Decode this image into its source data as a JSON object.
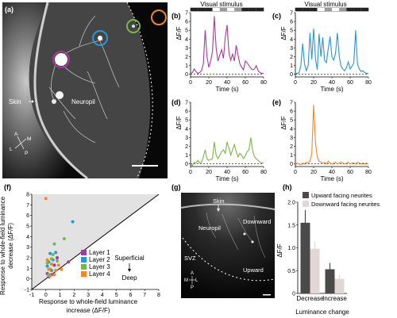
{
  "panel_a": {
    "label": "(a)",
    "skin_label": "Skin",
    "neuropil_label": "Neuropil",
    "compass": {
      "a": "A",
      "p": "P",
      "l": "L",
      "m": "M"
    },
    "circle_colors": [
      "#a73a9c",
      "#2a96d4",
      "#7ab648",
      "#f0882a"
    ]
  },
  "traces": {
    "stimulus_label": "Visual stimulus",
    "ylabel": "ΔF/F",
    "xlabel": "Time (s)",
    "x_ticks": [
      "0",
      "20",
      "40",
      "60",
      "80"
    ],
    "y_ticks": [
      "0",
      "1",
      "2",
      "3",
      "4",
      "5",
      "6",
      "7"
    ],
    "stimulus_bar": [
      "#222222",
      "#222222",
      "#222222",
      "#ffffff",
      "#9a9a9a",
      "#ffffff",
      "#9a9a9a",
      "#222222",
      "#222222",
      "#222222"
    ]
  },
  "chart_data": [
    {
      "panel": "(b)",
      "type": "line",
      "color": "#a73a9c",
      "xlim": [
        0,
        80
      ],
      "ylim": [
        -0.3,
        7
      ],
      "x": [
        0,
        2,
        4,
        6,
        8,
        10,
        12,
        14,
        16,
        18,
        20,
        22,
        24,
        26,
        28,
        30,
        32,
        34,
        36,
        38,
        40,
        42,
        44,
        46,
        48,
        50,
        52,
        54,
        56,
        58,
        60,
        62,
        64,
        66,
        68,
        70,
        72,
        74,
        76,
        78,
        80
      ],
      "values": [
        0.1,
        0.2,
        0.6,
        0.3,
        0.1,
        0.2,
        0.4,
        1.2,
        5.0,
        2.0,
        0.8,
        1.5,
        2.6,
        6.6,
        3.0,
        1.5,
        2.2,
        2.8,
        1.8,
        4.2,
        5.6,
        2.5,
        1.6,
        2.3,
        1.5,
        3.3,
        2.2,
        1.2,
        0.8,
        0.5,
        1.5,
        1.3,
        1.0,
        0.7,
        0.5,
        0.6,
        1.0,
        0.4,
        0.2,
        0.1,
        0.1
      ]
    },
    {
      "panel": "(c)",
      "type": "line",
      "color": "#2a96d4",
      "xlim": [
        0,
        80
      ],
      "ylim": [
        -0.3,
        7
      ],
      "x": [
        0,
        2,
        4,
        6,
        8,
        10,
        12,
        14,
        16,
        18,
        20,
        22,
        24,
        26,
        28,
        30,
        32,
        34,
        36,
        38,
        40,
        42,
        44,
        46,
        48,
        50,
        52,
        54,
        56,
        58,
        60,
        62,
        64,
        66,
        68,
        70,
        72,
        74,
        76,
        78,
        80
      ],
      "values": [
        0.1,
        0.1,
        0.2,
        1.0,
        3.5,
        1.2,
        0.4,
        1.0,
        4.7,
        1.7,
        5.2,
        1.8,
        0.5,
        4.6,
        2.0,
        4.2,
        1.6,
        1.3,
        2.9,
        4.3,
        2.0,
        1.6,
        2.4,
        4.7,
        2.1,
        0.9,
        0.6,
        0.4,
        0.8,
        1.4,
        0.6,
        0.9,
        1.3,
        5.0,
        1.2,
        0.6,
        0.3,
        0.4,
        0.2,
        0.1,
        0.1
      ]
    },
    {
      "panel": "(d)",
      "type": "line",
      "color": "#7ab648",
      "xlim": [
        0,
        80
      ],
      "ylim": [
        -0.3,
        7
      ],
      "x": [
        0,
        2,
        4,
        6,
        8,
        10,
        12,
        14,
        16,
        18,
        20,
        22,
        24,
        26,
        28,
        30,
        32,
        34,
        36,
        38,
        40,
        42,
        44,
        46,
        48,
        50,
        52,
        54,
        56,
        58,
        60,
        62,
        64,
        66,
        68,
        70,
        72,
        74,
        76,
        78,
        80
      ],
      "values": [
        0.0,
        -0.2,
        0.2,
        0.1,
        0.4,
        0.1,
        0.2,
        0.8,
        1.6,
        0.6,
        0.4,
        0.5,
        0.6,
        2.5,
        1.0,
        0.6,
        1.0,
        1.4,
        1.6,
        1.2,
        2.5,
        1.8,
        1.0,
        1.6,
        2.2,
        1.4,
        0.8,
        1.2,
        1.0,
        0.6,
        0.9,
        1.4,
        1.6,
        3.0,
        1.5,
        0.8,
        0.6,
        0.4,
        0.2,
        0.1,
        0.1
      ]
    },
    {
      "panel": "(e)",
      "type": "line",
      "color": "#f0882a",
      "xlim": [
        0,
        80
      ],
      "ylim": [
        -0.3,
        7
      ],
      "x": [
        0,
        2,
        4,
        6,
        8,
        10,
        12,
        14,
        16,
        18,
        20,
        22,
        24,
        26,
        28,
        30,
        32,
        34,
        36,
        38,
        40,
        42,
        44,
        46,
        48,
        50,
        52,
        54,
        56,
        58,
        60,
        62,
        64,
        66,
        68,
        70,
        72,
        74,
        76,
        78,
        80
      ],
      "values": [
        0.0,
        0.1,
        0.0,
        -0.1,
        0.1,
        0.0,
        0.2,
        0.1,
        0.3,
        1.2,
        6.7,
        2.4,
        0.8,
        0.3,
        0.2,
        0.1,
        0.2,
        0.0,
        0.3,
        0.1,
        0.0,
        0.1,
        0.2,
        0.0,
        0.1,
        0.2,
        0.1,
        0.0,
        0.1,
        0.2,
        0.0,
        0.1,
        0.1,
        0.0,
        0.2,
        0.1,
        0.0,
        0.1,
        0.0,
        0.1,
        0.0
      ]
    },
    {
      "panel": "(f)",
      "type": "scatter",
      "xlabel": "Response to whole-field luminance increase (ΔF/F)",
      "ylabel": "Response to whole-field luminance decrease (ΔF/F)",
      "xlim": [
        -1,
        8
      ],
      "ylim": [
        -1,
        8
      ],
      "x_ticks": [
        "-1",
        "0",
        "1",
        "2",
        "3",
        "4",
        "5",
        "6",
        "7",
        "8"
      ],
      "y_ticks": [
        "-1",
        "0",
        "1",
        "2",
        "3",
        "4",
        "5",
        "6",
        "7",
        "8"
      ],
      "annotation_top": "Superficial",
      "annotation_bottom": "Deep",
      "series": [
        {
          "name": "Layer 1",
          "color": "#a73a9c",
          "points": [
            [
              0.1,
              0.5
            ],
            [
              0.3,
              0.9
            ],
            [
              0.2,
              0.2
            ],
            [
              0.6,
              1.3
            ],
            [
              0.4,
              0.4
            ],
            [
              0.8,
              2.0
            ],
            [
              1.6,
              1.6
            ]
          ]
        },
        {
          "name": "Layer 2",
          "color": "#2a96d4",
          "points": [
            [
              0.2,
              1.6
            ],
            [
              0.3,
              2.4
            ],
            [
              0.5,
              1.8
            ],
            [
              0.1,
              1.2
            ],
            [
              0.7,
              2.5
            ],
            [
              1.9,
              5.4
            ],
            [
              0.4,
              0.8
            ],
            [
              0.2,
              0.3
            ]
          ]
        },
        {
          "name": "Layer 3",
          "color": "#7ab648",
          "points": [
            [
              0.1,
              1.5
            ],
            [
              0.5,
              2.3
            ],
            [
              0.3,
              0.9
            ],
            [
              0.8,
              1.7
            ],
            [
              0.2,
              0.4
            ],
            [
              0.6,
              3.3
            ],
            [
              1.3,
              3.8
            ],
            [
              0.4,
              1.9
            ]
          ]
        },
        {
          "name": "Layer 4",
          "color": "#f0882a",
          "points": [
            [
              0.0,
              7.6
            ],
            [
              0.1,
              1.8
            ],
            [
              0.4,
              1.4
            ],
            [
              0.7,
              0.8
            ],
            [
              0.3,
              0.3
            ],
            [
              0.9,
              1.3
            ],
            [
              1.1,
              0.9
            ],
            [
              0.2,
              0.9
            ],
            [
              0.6,
              0.4
            ]
          ]
        }
      ]
    },
    {
      "panel": "(h)",
      "type": "bar",
      "categories": [
        "Decrease",
        "Increase"
      ],
      "xlabel": "Luminance change",
      "ylabel": "ΔF/F",
      "ylim": [
        0,
        2
      ],
      "y_ticks": [
        "0",
        "0.5",
        "1.0",
        "1.5",
        "2.0"
      ],
      "series": [
        {
          "name": "Upward facing neurites",
          "color": "#4a4a4a",
          "values": [
            1.55,
            0.53
          ],
          "errors": [
            0.28,
            0.14
          ]
        },
        {
          "name": "Downward facing neurites",
          "color": "#e3d6d6",
          "values": [
            0.98,
            0.32
          ],
          "errors": [
            0.15,
            0.08
          ]
        }
      ]
    }
  ],
  "panel_g": {
    "label": "(g)",
    "skin_label": "Skin",
    "downward_label": "Downward",
    "neuropil_label": "Neuropil",
    "svz_label": "SVZ",
    "upward_label": "Upward",
    "compass": {
      "a": "A",
      "p": "P",
      "l": "L",
      "m": "M"
    }
  }
}
